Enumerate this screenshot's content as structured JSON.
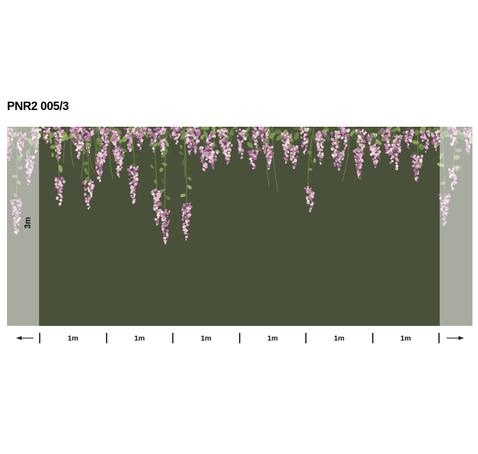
{
  "title": "PNR2 005/3",
  "mural": {
    "height_label": "3m",
    "background_color": "#49513a",
    "stem_color": "#6b8447",
    "leaf_colors": [
      "#738c4b",
      "#5a7140",
      "#85a058",
      "#4a5f34",
      "#9aad67"
    ],
    "flower_colors": [
      "#e8b0d6",
      "#d493c4",
      "#c478b0",
      "#ad639c",
      "#f1cfe3",
      "#f6e8df"
    ],
    "bleed_overlay_color": "#ffffff",
    "bleed_overlay_opacity": 0.52
  },
  "ruler": {
    "segments": [
      "1m",
      "1m",
      "1m",
      "1m",
      "1m",
      "1m"
    ],
    "icons": {
      "left_arrow": "←",
      "right_arrow": "→"
    }
  }
}
